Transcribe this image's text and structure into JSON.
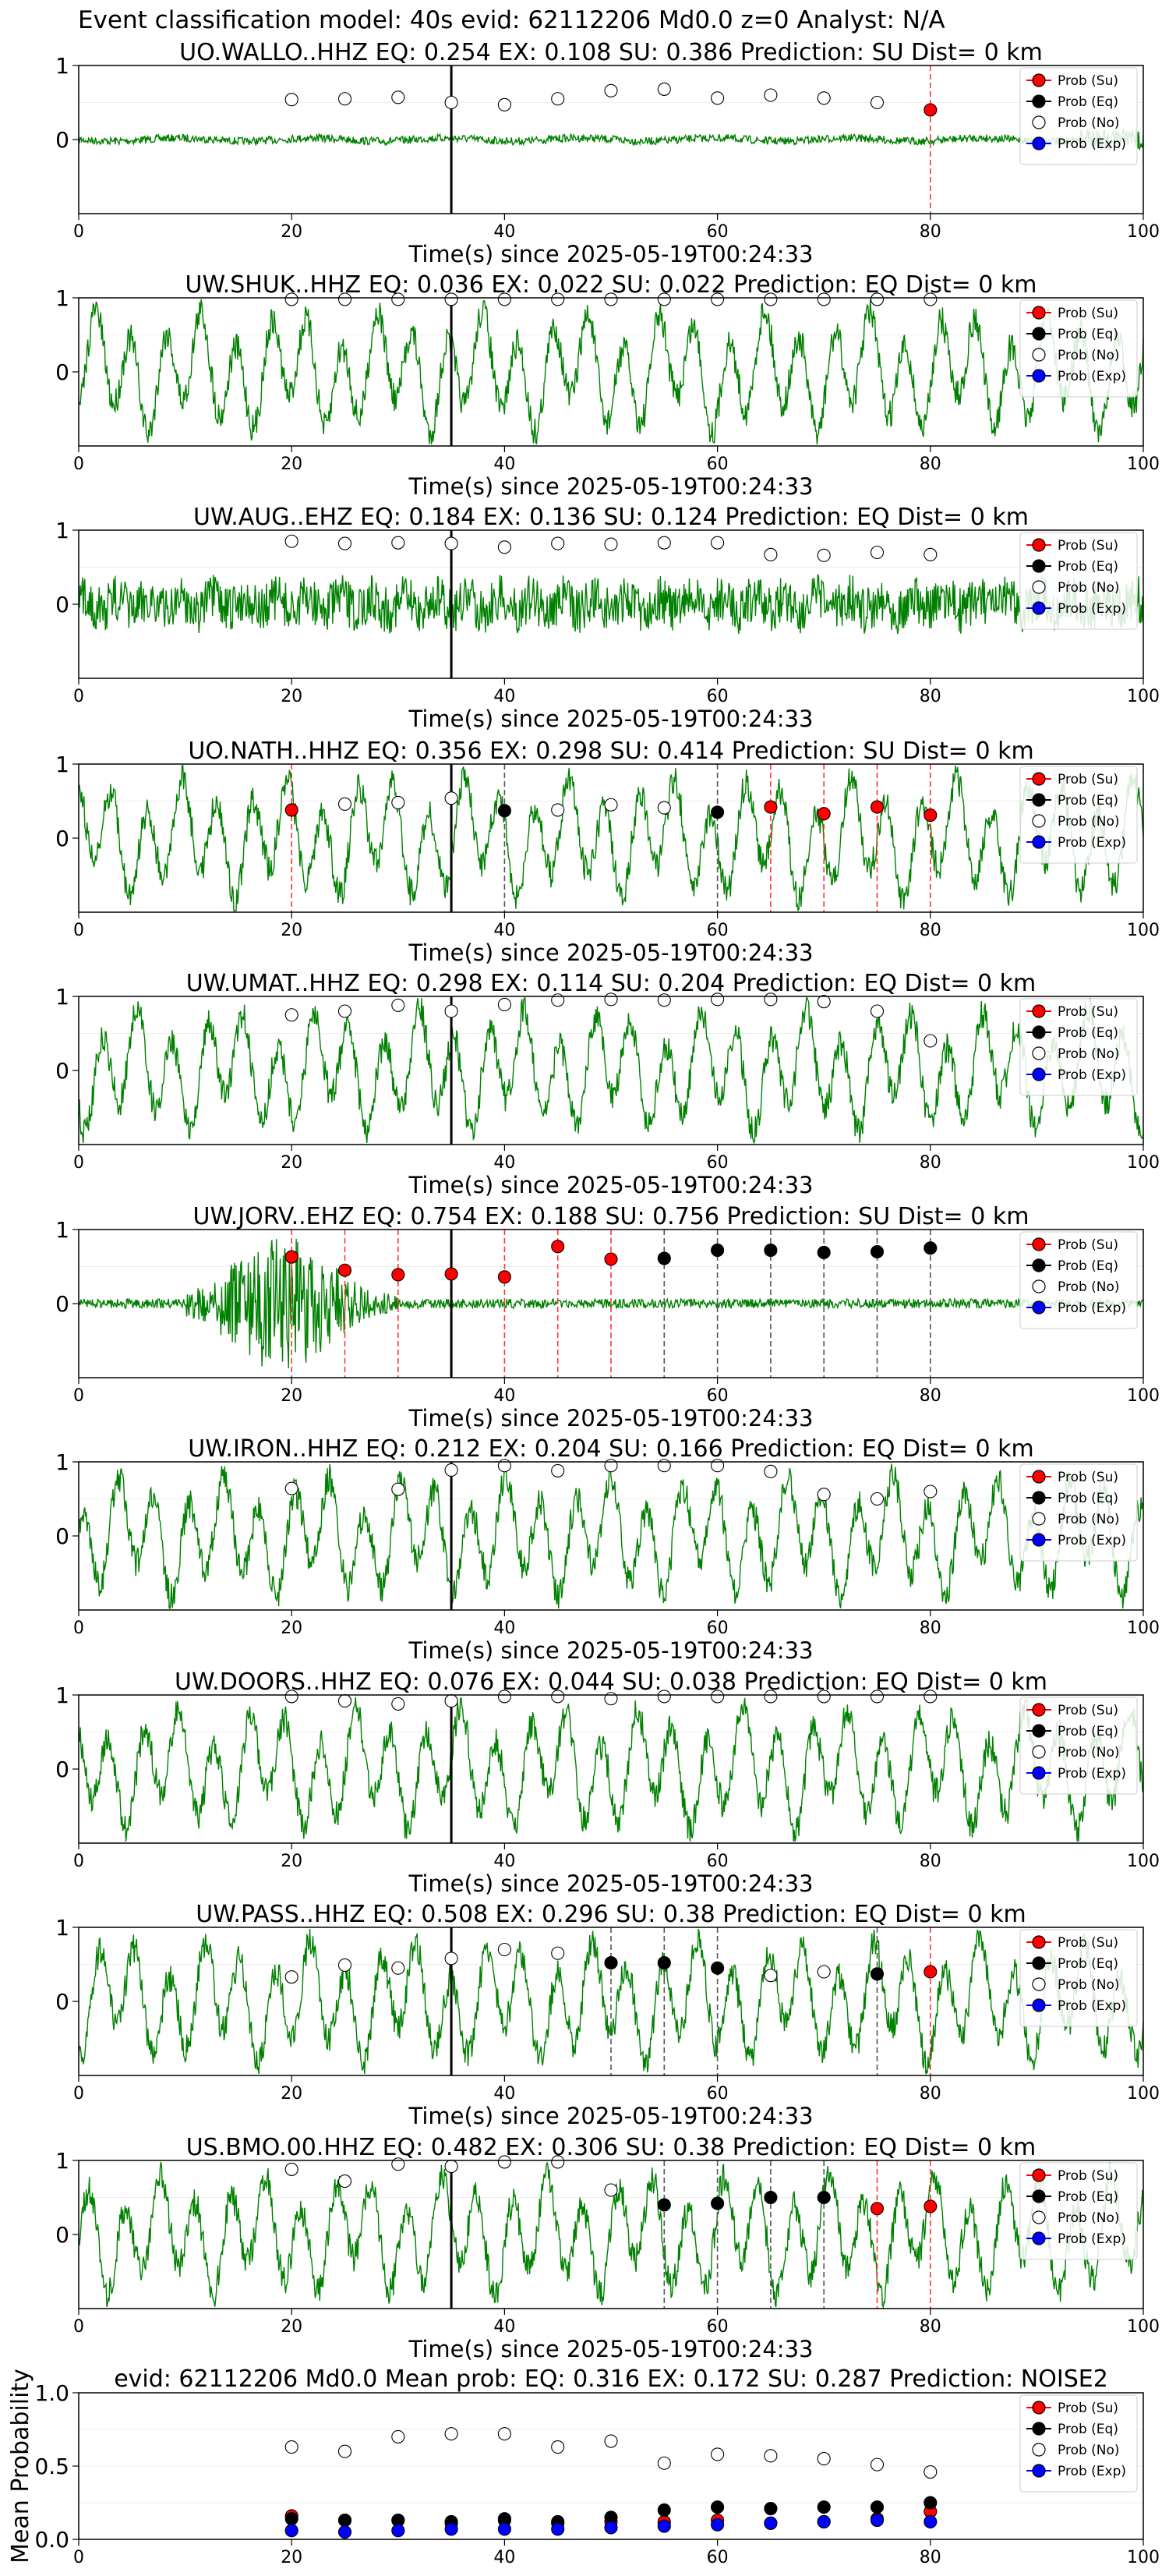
{
  "figure": {
    "title": "Event classification model: 40s evid: 62112206 Md0.0 z=0 Analyst: N/A"
  },
  "legend": {
    "labels": [
      "Prob (Su)",
      "Prob (Eq)",
      "Prob (No)",
      "Prob (Exp)"
    ],
    "placement": "upper-right"
  },
  "style": {
    "waveform_color": "#008000",
    "su_color": "#ff0000",
    "eq_color": "#000000",
    "no_color": "#ffffff",
    "exp_color": "#0000ff",
    "su_line": "#ff3333",
    "eq_line": "#555555"
  },
  "chart_data": [
    {
      "type": "line",
      "title": "UO.WALLO..HHZ   EQ: 0.254  EX: 0.108  SU: 0.386   Prediction: SU    Dist= 0 km",
      "xlabel": "Time(s) since 2025-05-19T00:24:33",
      "ylabel": "",
      "xlim": [
        0,
        100
      ],
      "ylim": [
        -1,
        1
      ],
      "xticks": [
        0,
        20,
        40,
        60,
        80,
        100
      ],
      "yticks": [
        0,
        1
      ],
      "pick_time": 35,
      "waveform_amplitude": "low",
      "x": [
        20,
        25,
        30,
        35,
        40,
        45,
        50,
        55,
        60,
        65,
        70,
        75,
        80
      ],
      "predicted": [
        "No",
        "No",
        "No",
        "No",
        "No",
        "No",
        "No",
        "No",
        "No",
        "No",
        "No",
        "No",
        "Su"
      ],
      "prob": [
        0.54,
        0.55,
        0.57,
        0.5,
        0.47,
        0.55,
        0.66,
        0.68,
        0.56,
        0.6,
        0.56,
        0.5,
        0.4
      ]
    },
    {
      "type": "line",
      "title": "UW.SHUK..HHZ   EQ: 0.036  EX: 0.022  SU: 0.022   Prediction: EQ    Dist= 0 km",
      "xlabel": "Time(s) since 2025-05-19T00:24:33",
      "ylabel": "",
      "xlim": [
        0,
        100
      ],
      "ylim": [
        -1,
        1
      ],
      "xticks": [
        0,
        20,
        40,
        60,
        80,
        100
      ],
      "yticks": [
        0,
        1
      ],
      "pick_time": 35,
      "waveform_amplitude": "high",
      "x": [
        20,
        25,
        30,
        35,
        40,
        45,
        50,
        55,
        60,
        65,
        70,
        75,
        80
      ],
      "predicted": [
        "No",
        "No",
        "No",
        "No",
        "No",
        "No",
        "No",
        "No",
        "No",
        "No",
        "No",
        "No",
        "No"
      ],
      "prob": [
        0.98,
        0.98,
        0.98,
        0.98,
        0.98,
        0.98,
        0.98,
        0.98,
        0.98,
        0.98,
        0.98,
        0.98,
        0.98
      ]
    },
    {
      "type": "line",
      "title": "UW.AUG..EHZ   EQ: 0.184  EX: 0.136  SU: 0.124   Prediction: EQ    Dist= 0 km",
      "xlabel": "Time(s) since 2025-05-19T00:24:33",
      "ylabel": "",
      "xlim": [
        0,
        100
      ],
      "ylim": [
        -1,
        1
      ],
      "xticks": [
        0,
        20,
        40,
        60,
        80,
        100
      ],
      "yticks": [
        0,
        1
      ],
      "pick_time": 35,
      "waveform_amplitude": "noise",
      "x": [
        20,
        25,
        30,
        35,
        40,
        45,
        50,
        55,
        60,
        65,
        70,
        75,
        80
      ],
      "predicted": [
        "No",
        "No",
        "No",
        "No",
        "No",
        "No",
        "No",
        "No",
        "No",
        "No",
        "No",
        "No",
        "No"
      ],
      "prob": [
        0.85,
        0.82,
        0.83,
        0.82,
        0.77,
        0.82,
        0.81,
        0.83,
        0.83,
        0.67,
        0.66,
        0.7,
        0.67
      ]
    },
    {
      "type": "line",
      "title": "UO.NATH..HHZ   EQ: 0.356  EX: 0.298  SU: 0.414   Prediction: SU    Dist= 0 km",
      "xlabel": "Time(s) since 2025-05-19T00:24:33",
      "ylabel": "",
      "xlim": [
        0,
        100
      ],
      "ylim": [
        -1,
        1
      ],
      "xticks": [
        0,
        20,
        40,
        60,
        80,
        100
      ],
      "yticks": [
        0,
        1
      ],
      "pick_time": 35,
      "waveform_amplitude": "high",
      "x": [
        20,
        25,
        30,
        35,
        40,
        45,
        50,
        55,
        60,
        65,
        70,
        75,
        80
      ],
      "predicted": [
        "Su",
        "No",
        "No",
        "No",
        "Eq",
        "No",
        "No",
        "No",
        "Eq",
        "Su",
        "Su",
        "Su",
        "Su"
      ],
      "prob": [
        0.38,
        0.46,
        0.48,
        0.54,
        0.37,
        0.38,
        0.45,
        0.41,
        0.35,
        0.42,
        0.33,
        0.42,
        0.31
      ]
    },
    {
      "type": "line",
      "title": "UW.UMAT..HHZ   EQ: 0.298  EX: 0.114  SU: 0.204   Prediction: EQ    Dist= 0 km",
      "xlabel": "Time(s) since 2025-05-19T00:24:33",
      "ylabel": "",
      "xlim": [
        0,
        100
      ],
      "ylim": [
        -1,
        1
      ],
      "xticks": [
        0,
        20,
        40,
        60,
        80,
        100
      ],
      "yticks": [
        0,
        1
      ],
      "pick_time": 35,
      "waveform_amplitude": "high",
      "x": [
        20,
        25,
        30,
        35,
        40,
        45,
        50,
        55,
        60,
        65,
        70,
        75,
        80
      ],
      "predicted": [
        "No",
        "No",
        "No",
        "No",
        "No",
        "No",
        "No",
        "No",
        "No",
        "No",
        "No",
        "No",
        "No"
      ],
      "prob": [
        0.75,
        0.8,
        0.88,
        0.8,
        0.89,
        0.95,
        0.96,
        0.95,
        0.96,
        0.96,
        0.93,
        0.8,
        0.4
      ]
    },
    {
      "type": "line",
      "title": "UW.JORV..EHZ   EQ: 0.754  EX: 0.188  SU: 0.756   Prediction: SU    Dist= 0 km",
      "xlabel": "Time(s) since 2025-05-19T00:24:33",
      "ylabel": "",
      "xlim": [
        0,
        100
      ],
      "ylim": [
        -1,
        1
      ],
      "xticks": [
        0,
        20,
        40,
        60,
        80,
        100
      ],
      "yticks": [
        0,
        1
      ],
      "pick_time": 35,
      "waveform_amplitude": "burst",
      "x": [
        20,
        25,
        30,
        35,
        40,
        45,
        50,
        55,
        60,
        65,
        70,
        75,
        80
      ],
      "predicted": [
        "Su",
        "Su",
        "Su",
        "Su",
        "Su",
        "Su",
        "Su",
        "Eq",
        "Eq",
        "Eq",
        "Eq",
        "Eq",
        "Eq"
      ],
      "prob": [
        0.63,
        0.45,
        0.39,
        0.4,
        0.36,
        0.77,
        0.6,
        0.61,
        0.72,
        0.72,
        0.69,
        0.7,
        0.75
      ]
    },
    {
      "type": "line",
      "title": "UW.IRON..HHZ   EQ: 0.212  EX: 0.204  SU: 0.166   Prediction: EQ    Dist= 0 km",
      "xlabel": "Time(s) since 2025-05-19T00:24:33",
      "ylabel": "",
      "xlim": [
        0,
        100
      ],
      "ylim": [
        -1,
        1
      ],
      "xticks": [
        0,
        20,
        40,
        60,
        80,
        100
      ],
      "yticks": [
        0,
        1
      ],
      "pick_time": 35,
      "waveform_amplitude": "high",
      "x": [
        20,
        30,
        35,
        40,
        45,
        50,
        55,
        60,
        65,
        70,
        75,
        80
      ],
      "predicted": [
        "No",
        "No",
        "No",
        "No",
        "No",
        "No",
        "No",
        "No",
        "No",
        "No",
        "No",
        "No"
      ],
      "prob": [
        0.64,
        0.63,
        0.89,
        0.95,
        0.88,
        0.95,
        0.95,
        0.95,
        0.87,
        0.56,
        0.5,
        0.6
      ]
    },
    {
      "type": "line",
      "title": "UW.DOORS..HHZ   EQ: 0.076  EX: 0.044  SU: 0.038   Prediction: EQ    Dist= 0 km",
      "xlabel": "Time(s) since 2025-05-19T00:24:33",
      "ylabel": "",
      "xlim": [
        0,
        100
      ],
      "ylim": [
        -1,
        1
      ],
      "xticks": [
        0,
        20,
        40,
        60,
        80,
        100
      ],
      "yticks": [
        0,
        1
      ],
      "pick_time": 35,
      "waveform_amplitude": "high",
      "x": [
        20,
        25,
        30,
        35,
        40,
        45,
        50,
        55,
        60,
        65,
        70,
        75,
        80
      ],
      "predicted": [
        "No",
        "No",
        "No",
        "No",
        "No",
        "No",
        "No",
        "No",
        "No",
        "No",
        "No",
        "No",
        "No"
      ],
      "prob": [
        0.98,
        0.92,
        0.88,
        0.92,
        0.98,
        0.98,
        0.95,
        0.98,
        0.98,
        0.98,
        0.98,
        0.98,
        0.98
      ]
    },
    {
      "type": "line",
      "title": "UW.PASS..HHZ   EQ: 0.508  EX: 0.296  SU: 0.38   Prediction: EQ    Dist= 0 km",
      "xlabel": "Time(s) since 2025-05-19T00:24:33",
      "ylabel": "",
      "xlim": [
        0,
        100
      ],
      "ylim": [
        -1,
        1
      ],
      "xticks": [
        0,
        20,
        40,
        60,
        80,
        100
      ],
      "yticks": [
        0,
        1
      ],
      "pick_time": 35,
      "waveform_amplitude": "high",
      "x": [
        20,
        25,
        30,
        35,
        40,
        45,
        50,
        55,
        60,
        65,
        70,
        75,
        80
      ],
      "predicted": [
        "No",
        "No",
        "No",
        "No",
        "No",
        "No",
        "Eq",
        "Eq",
        "Eq",
        "No",
        "No",
        "Eq",
        "Su"
      ],
      "prob": [
        0.33,
        0.49,
        0.45,
        0.58,
        0.7,
        0.65,
        0.52,
        0.52,
        0.45,
        0.35,
        0.4,
        0.37,
        0.4
      ]
    },
    {
      "type": "line",
      "title": "US.BMO.00.HHZ   EQ: 0.482  EX: 0.306  SU: 0.38   Prediction: EQ    Dist= 0 km",
      "xlabel": "Time(s) since 2025-05-19T00:24:33",
      "ylabel": "",
      "xlim": [
        0,
        100
      ],
      "ylim": [
        -1,
        1
      ],
      "xticks": [
        0,
        20,
        40,
        60,
        80,
        100
      ],
      "yticks": [
        0,
        1
      ],
      "pick_time": 35,
      "waveform_amplitude": "high",
      "x": [
        20,
        25,
        30,
        35,
        40,
        45,
        50,
        55,
        60,
        65,
        70,
        75,
        80
      ],
      "predicted": [
        "No",
        "No",
        "No",
        "No",
        "No",
        "No",
        "No",
        "Eq",
        "Eq",
        "Eq",
        "Eq",
        "Su",
        "Su"
      ],
      "prob": [
        0.88,
        0.72,
        0.95,
        0.92,
        0.98,
        0.98,
        0.6,
        0.4,
        0.42,
        0.5,
        0.5,
        0.35,
        0.38
      ]
    },
    {
      "type": "scatter",
      "title": "evid: 62112206   Md0.0    Mean prob:   EQ: 0.316  EX: 0.172  SU: 0.287   Prediction: NOISE2",
      "xlabel": "",
      "ylabel": "Mean Probability",
      "xlim": [
        0,
        100
      ],
      "ylim": [
        0,
        1
      ],
      "xticks": [
        0,
        20,
        40,
        60,
        80,
        100
      ],
      "yticks": [
        0.0,
        0.5,
        1.0
      ],
      "x": [
        20,
        25,
        30,
        35,
        40,
        45,
        50,
        55,
        60,
        65,
        70,
        75,
        80
      ],
      "series": [
        {
          "name": "Prob (Su)",
          "values": [
            0.16,
            0.13,
            0.13,
            0.11,
            0.13,
            0.11,
            0.12,
            0.12,
            0.13,
            0.11,
            0.12,
            0.14,
            0.19
          ]
        },
        {
          "name": "Prob (Eq)",
          "values": [
            0.14,
            0.13,
            0.13,
            0.12,
            0.14,
            0.12,
            0.15,
            0.2,
            0.22,
            0.21,
            0.22,
            0.22,
            0.25
          ]
        },
        {
          "name": "Prob (No)",
          "values": [
            0.63,
            0.6,
            0.7,
            0.72,
            0.72,
            0.63,
            0.67,
            0.52,
            0.58,
            0.57,
            0.55,
            0.51,
            0.46
          ]
        },
        {
          "name": "Prob (Exp)",
          "values": [
            0.06,
            0.05,
            0.06,
            0.07,
            0.07,
            0.07,
            0.08,
            0.09,
            0.1,
            0.11,
            0.12,
            0.13,
            0.12
          ]
        }
      ]
    }
  ]
}
